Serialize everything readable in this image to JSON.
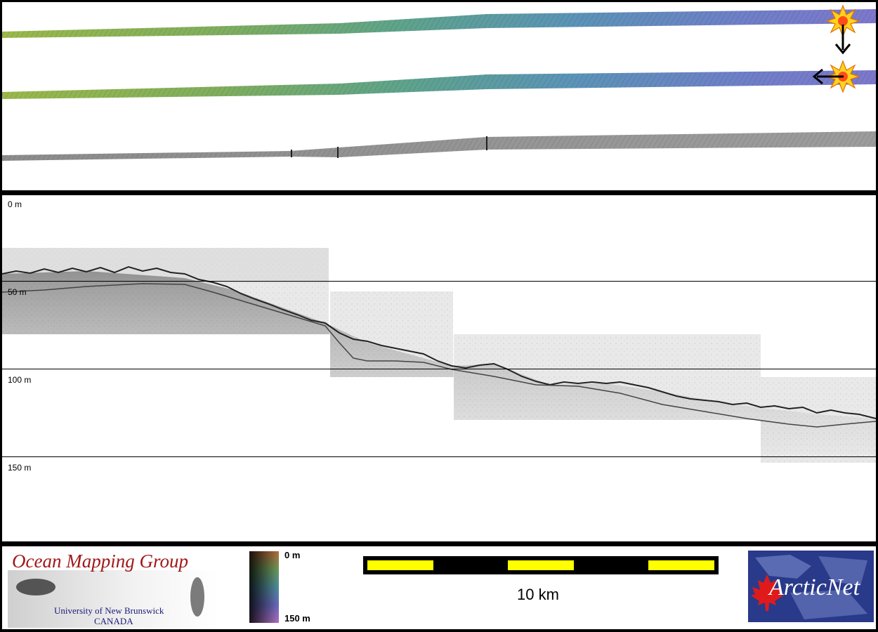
{
  "depth_panel": {
    "depth_labels": [
      "0 m",
      "50 m",
      "100 m",
      "150 m"
    ]
  },
  "footer": {
    "omg": {
      "title": "Ocean Mapping Group",
      "university": "University of New Brunswick",
      "country": "CANADA"
    },
    "colorbar": {
      "top_label": "0 m",
      "bottom_label": "150 m"
    },
    "scalebar": {
      "label": "10 km",
      "colors": {
        "segment_a": "#ffff00",
        "segment_b": "#000000"
      }
    },
    "arcticnet": {
      "logo_text": "ArcticNet"
    }
  },
  "icons": [
    "explosion-marker-icon",
    "arrow-down-icon",
    "arrow-left-icon",
    "maple-leaf-icon"
  ],
  "colors": {
    "frame": "#000000",
    "title_red": "#a01818",
    "sub_blue": "#1a1a7a",
    "arctic_blue": "#2a3a8a"
  }
}
